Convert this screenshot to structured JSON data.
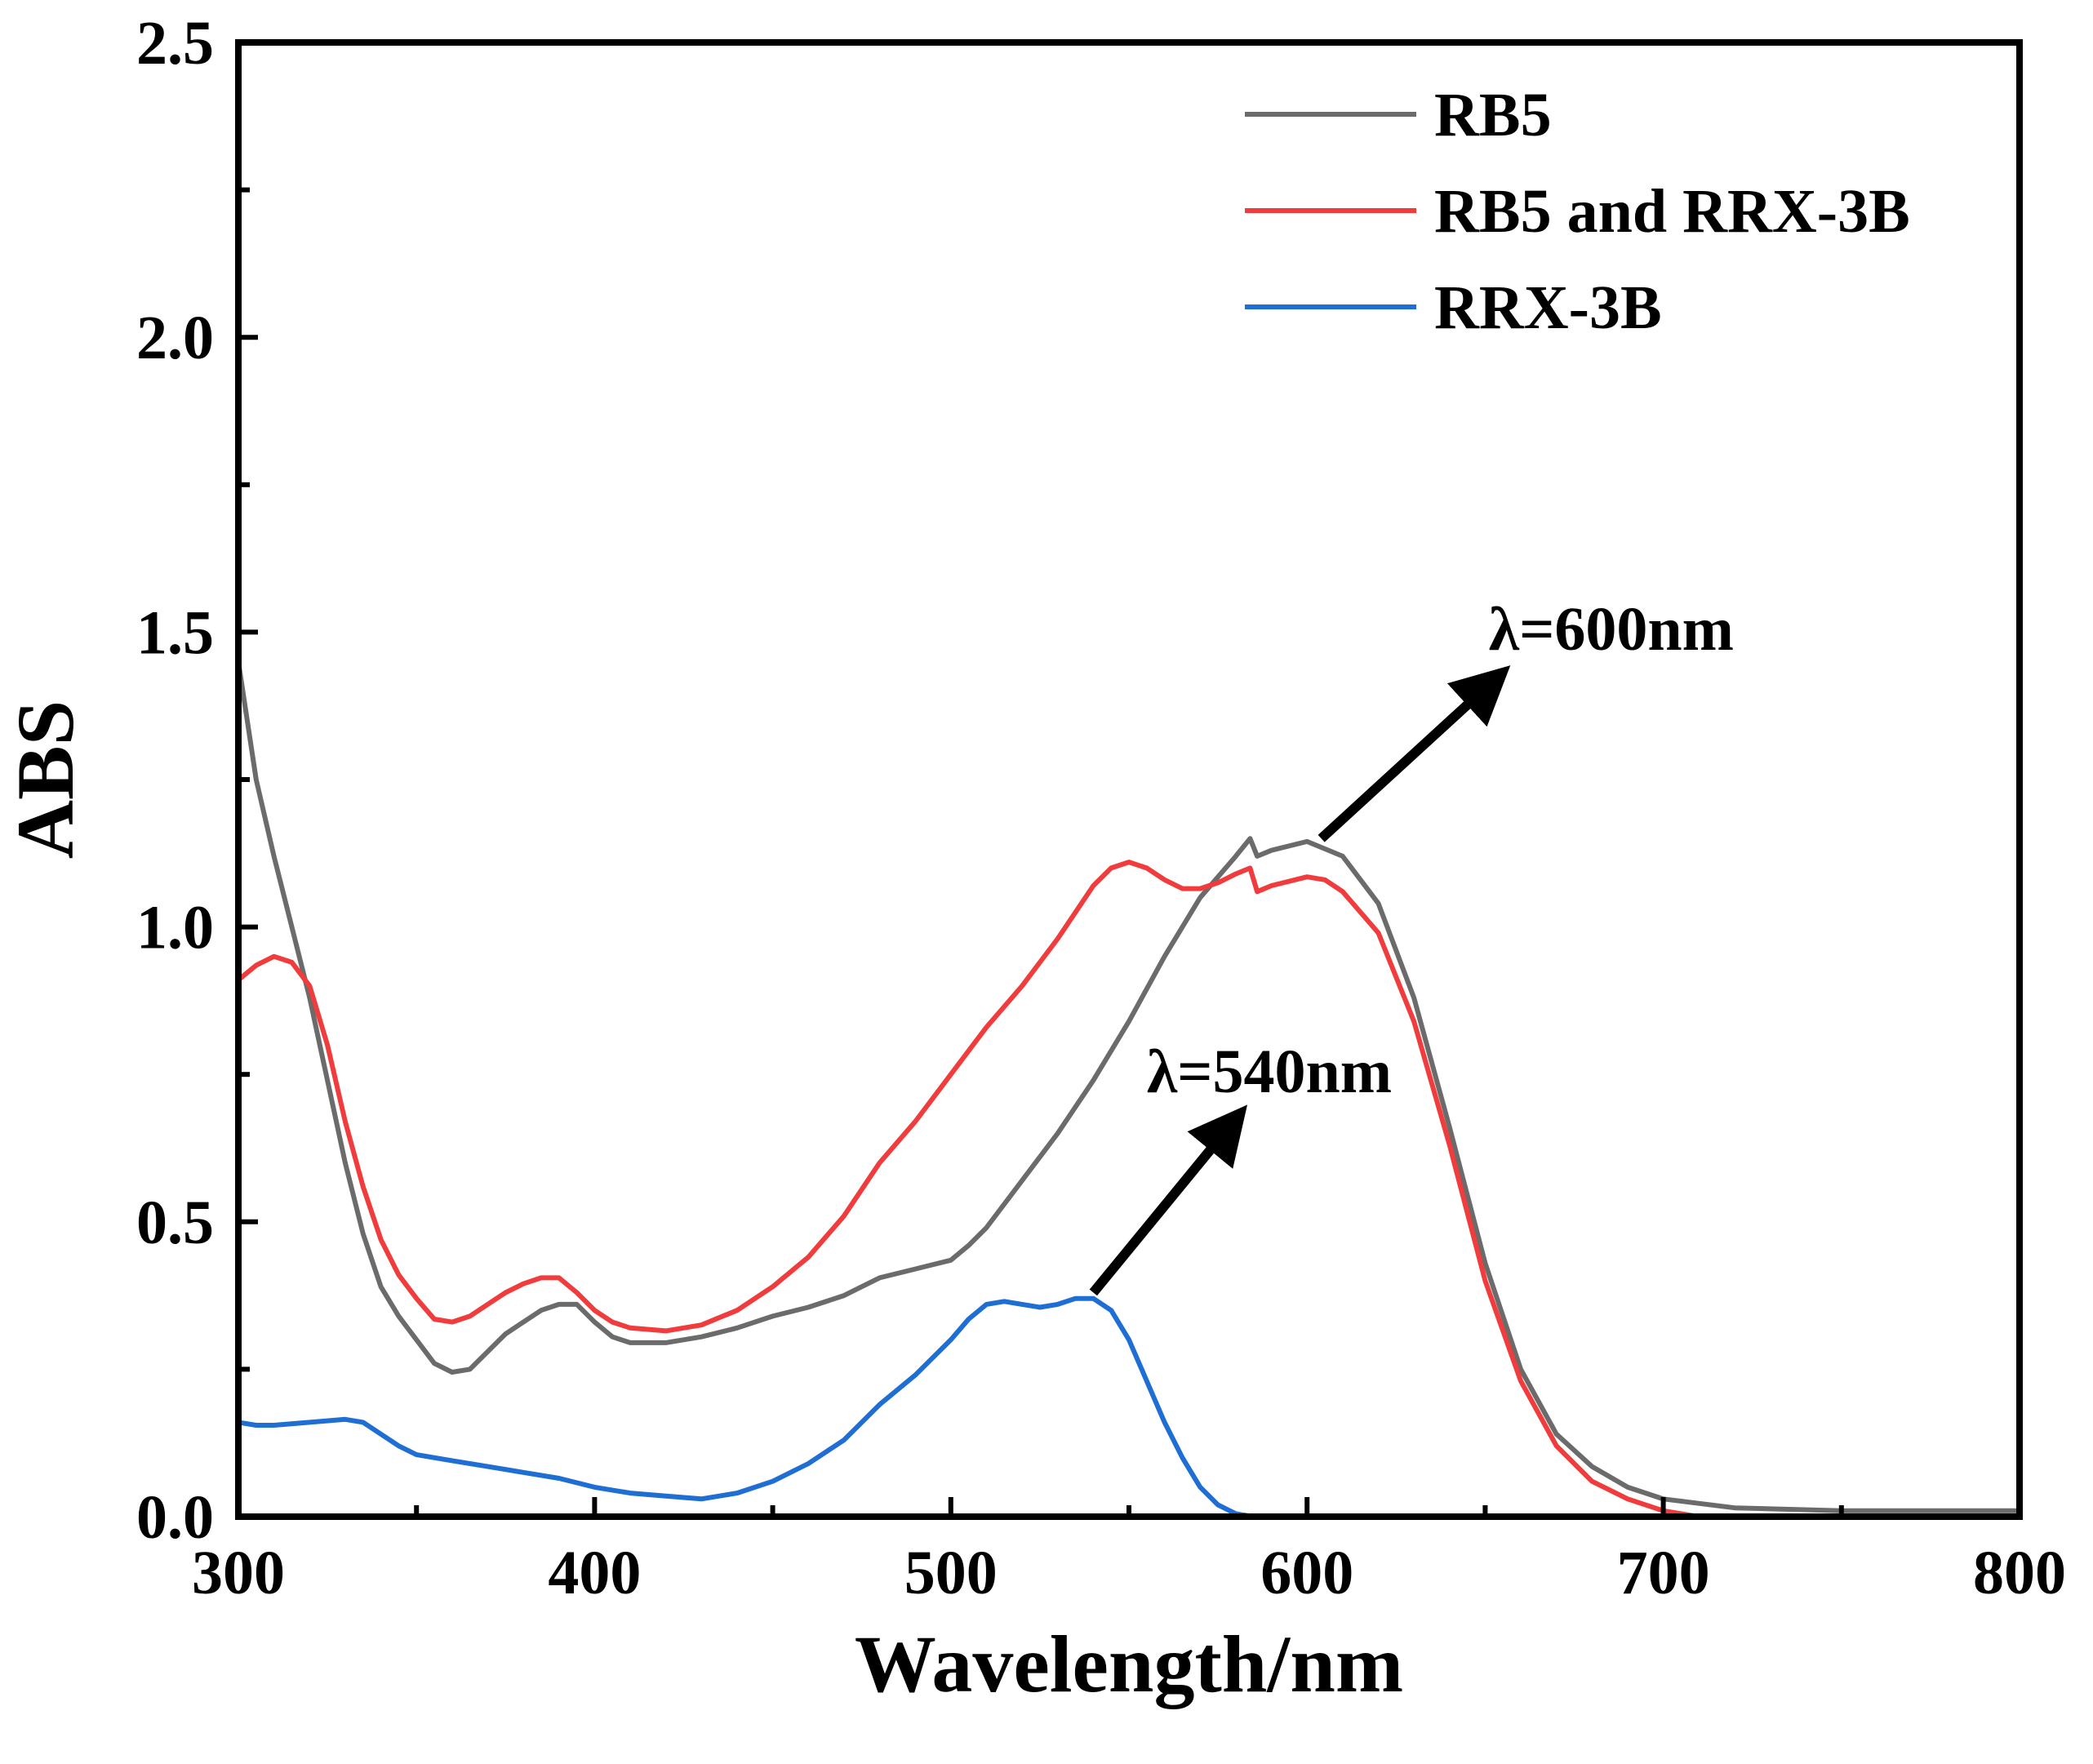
{
  "chart_data": {
    "type": "line",
    "title": "",
    "xlabel": "Wavelength/nm",
    "ylabel": "ABS",
    "xlim": [
      300,
      800
    ],
    "ylim": [
      0,
      2.5
    ],
    "x_major_ticks": [
      300,
      400,
      500,
      600,
      700,
      800
    ],
    "x_minor_ticks": [
      350,
      450,
      550,
      650,
      750
    ],
    "y_major_ticks": [
      0.0,
      0.5,
      1.0,
      1.5,
      2.0,
      2.5
    ],
    "y_minor_ticks": [
      0.25,
      0.75,
      1.25,
      1.75,
      2.25
    ],
    "x_tick_labels": [
      "300",
      "400",
      "500",
      "600",
      "700",
      "800"
    ],
    "y_tick_labels": [
      "0.0",
      "0.5",
      "1.0",
      "1.5",
      "2.0",
      "2.5"
    ],
    "legend_position": "top-right",
    "series": [
      {
        "name": "RB5",
        "color": "#6b6b6b",
        "points": [
          [
            300,
            1.45
          ],
          [
            305,
            1.25
          ],
          [
            310,
            1.12
          ],
          [
            315,
            1.0
          ],
          [
            320,
            0.88
          ],
          [
            325,
            0.74
          ],
          [
            330,
            0.6
          ],
          [
            335,
            0.48
          ],
          [
            340,
            0.39
          ],
          [
            345,
            0.34
          ],
          [
            350,
            0.3
          ],
          [
            355,
            0.26
          ],
          [
            360,
            0.245
          ],
          [
            365,
            0.25
          ],
          [
            370,
            0.28
          ],
          [
            375,
            0.31
          ],
          [
            380,
            0.33
          ],
          [
            385,
            0.35
          ],
          [
            390,
            0.36
          ],
          [
            395,
            0.36
          ],
          [
            400,
            0.33
          ],
          [
            405,
            0.305
          ],
          [
            410,
            0.295
          ],
          [
            420,
            0.295
          ],
          [
            430,
            0.305
          ],
          [
            440,
            0.32
          ],
          [
            450,
            0.34
          ],
          [
            460,
            0.355
          ],
          [
            470,
            0.375
          ],
          [
            480,
            0.405
          ],
          [
            490,
            0.42
          ],
          [
            500,
            0.435
          ],
          [
            505,
            0.46
          ],
          [
            510,
            0.49
          ],
          [
            520,
            0.57
          ],
          [
            530,
            0.65
          ],
          [
            540,
            0.74
          ],
          [
            550,
            0.84
          ],
          [
            560,
            0.95
          ],
          [
            570,
            1.05
          ],
          [
            580,
            1.12
          ],
          [
            584,
            1.15
          ],
          [
            586,
            1.12
          ],
          [
            590,
            1.13
          ],
          [
            600,
            1.145
          ],
          [
            610,
            1.12
          ],
          [
            620,
            1.04
          ],
          [
            630,
            0.88
          ],
          [
            640,
            0.66
          ],
          [
            650,
            0.43
          ],
          [
            660,
            0.25
          ],
          [
            670,
            0.14
          ],
          [
            680,
            0.085
          ],
          [
            690,
            0.05
          ],
          [
            700,
            0.03
          ],
          [
            720,
            0.015
          ],
          [
            750,
            0.01
          ],
          [
            800,
            0.01
          ]
        ]
      },
      {
        "name": "RB5 and RRX-3B",
        "color": "#f03c3c",
        "points": [
          [
            300,
            0.91
          ],
          [
            305,
            0.935
          ],
          [
            310,
            0.95
          ],
          [
            315,
            0.94
          ],
          [
            320,
            0.9
          ],
          [
            325,
            0.8
          ],
          [
            330,
            0.67
          ],
          [
            335,
            0.56
          ],
          [
            340,
            0.47
          ],
          [
            345,
            0.41
          ],
          [
            350,
            0.37
          ],
          [
            355,
            0.335
          ],
          [
            360,
            0.33
          ],
          [
            365,
            0.34
          ],
          [
            370,
            0.36
          ],
          [
            375,
            0.38
          ],
          [
            380,
            0.395
          ],
          [
            385,
            0.405
          ],
          [
            390,
            0.405
          ],
          [
            395,
            0.38
          ],
          [
            400,
            0.35
          ],
          [
            405,
            0.33
          ],
          [
            410,
            0.32
          ],
          [
            420,
            0.315
          ],
          [
            430,
            0.325
          ],
          [
            440,
            0.35
          ],
          [
            450,
            0.39
          ],
          [
            460,
            0.44
          ],
          [
            470,
            0.51
          ],
          [
            480,
            0.6
          ],
          [
            490,
            0.67
          ],
          [
            500,
            0.75
          ],
          [
            510,
            0.83
          ],
          [
            520,
            0.9
          ],
          [
            530,
            0.98
          ],
          [
            540,
            1.07
          ],
          [
            545,
            1.1
          ],
          [
            550,
            1.11
          ],
          [
            555,
            1.1
          ],
          [
            560,
            1.08
          ],
          [
            565,
            1.065
          ],
          [
            570,
            1.065
          ],
          [
            575,
            1.075
          ],
          [
            580,
            1.09
          ],
          [
            584,
            1.1
          ],
          [
            586,
            1.06
          ],
          [
            590,
            1.07
          ],
          [
            600,
            1.085
          ],
          [
            605,
            1.08
          ],
          [
            610,
            1.06
          ],
          [
            620,
            0.99
          ],
          [
            630,
            0.84
          ],
          [
            640,
            0.63
          ],
          [
            650,
            0.4
          ],
          [
            660,
            0.23
          ],
          [
            670,
            0.12
          ],
          [
            680,
            0.06
          ],
          [
            690,
            0.03
          ],
          [
            700,
            0.01
          ],
          [
            710,
            0.0
          ],
          [
            800,
            0.0
          ]
        ]
      },
      {
        "name": "RRX-3B",
        "color": "#1f6ed4",
        "points": [
          [
            300,
            0.16
          ],
          [
            305,
            0.155
          ],
          [
            310,
            0.155
          ],
          [
            320,
            0.16
          ],
          [
            330,
            0.165
          ],
          [
            335,
            0.16
          ],
          [
            340,
            0.14
          ],
          [
            345,
            0.12
          ],
          [
            350,
            0.105
          ],
          [
            360,
            0.095
          ],
          [
            370,
            0.085
          ],
          [
            380,
            0.075
          ],
          [
            390,
            0.065
          ],
          [
            400,
            0.05
          ],
          [
            410,
            0.04
          ],
          [
            420,
            0.035
          ],
          [
            430,
            0.03
          ],
          [
            440,
            0.04
          ],
          [
            450,
            0.06
          ],
          [
            460,
            0.09
          ],
          [
            470,
            0.13
          ],
          [
            480,
            0.19
          ],
          [
            490,
            0.24
          ],
          [
            500,
            0.3
          ],
          [
            505,
            0.335
          ],
          [
            510,
            0.36
          ],
          [
            515,
            0.365
          ],
          [
            520,
            0.36
          ],
          [
            525,
            0.355
          ],
          [
            530,
            0.36
          ],
          [
            535,
            0.37
          ],
          [
            540,
            0.37
          ],
          [
            545,
            0.35
          ],
          [
            550,
            0.3
          ],
          [
            555,
            0.23
          ],
          [
            560,
            0.16
          ],
          [
            565,
            0.1
          ],
          [
            570,
            0.05
          ],
          [
            575,
            0.02
          ],
          [
            580,
            0.005
          ],
          [
            585,
            0.0
          ]
        ]
      }
    ],
    "annotations": [
      {
        "text": "λ=540nm",
        "x": 555,
        "y": 0.72,
        "arrow_from": [
          540,
          0.38
        ],
        "arrow_to": [
          578,
          0.66
        ]
      },
      {
        "text": "λ=600nm",
        "x": 651,
        "y": 1.47,
        "arrow_from": [
          604,
          1.15
        ],
        "arrow_to": [
          651,
          1.41
        ]
      }
    ]
  }
}
